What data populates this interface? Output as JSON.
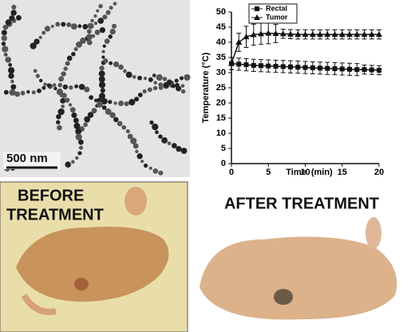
{
  "chart_data": {
    "type": "line",
    "x_label": "Time  (min)",
    "y_label": "Temperature (°C)",
    "x": [
      0,
      1,
      2,
      3,
      4,
      5,
      6,
      7,
      8,
      9,
      10,
      11,
      12,
      13,
      14,
      15,
      16,
      17,
      18,
      19,
      20
    ],
    "series": [
      {
        "name": "Rectal",
        "color": "#111111",
        "marker": "square",
        "values": [
          33,
          32.8,
          32.6,
          32.4,
          32.3,
          32.2,
          32.1,
          32,
          31.9,
          31.8,
          31.7,
          31.6,
          31.5,
          31.4,
          31.3,
          31.2,
          31.1,
          31,
          31,
          30.9,
          30.8
        ],
        "errors": [
          2,
          2,
          2,
          2,
          2,
          2,
          2,
          2,
          2,
          2,
          2,
          2,
          2,
          2,
          2,
          2,
          2,
          2,
          1.5,
          1.5,
          1.5
        ]
      },
      {
        "name": "Tumor",
        "color": "#111111",
        "marker": "triangle",
        "values": [
          33,
          40,
          41.8,
          42.5,
          42.8,
          43,
          42.9,
          42.8,
          42.7,
          42.6,
          42.6,
          42.6,
          42.6,
          42.6,
          42.6,
          42.6,
          42.6,
          42.6,
          42.6,
          42.6,
          42.6
        ],
        "errors": [
          2,
          3,
          3.5,
          3.5,
          3.5,
          3.5,
          3,
          1.5,
          1.5,
          1.5,
          1.5,
          1.5,
          1.5,
          1.5,
          1.5,
          1.5,
          1.5,
          1.5,
          1.5,
          1.5,
          1.5
        ]
      }
    ],
    "xlim": [
      0,
      20
    ],
    "xticks": [
      0,
      5,
      10,
      15,
      20
    ],
    "ylim": [
      0,
      50
    ],
    "yticks": [
      0,
      5,
      10,
      15,
      20,
      25,
      30,
      35,
      40,
      45,
      50
    ],
    "legend": "top-left"
  },
  "panels": {
    "scale_bar": "500 nm",
    "before_label": [
      "BEFORE",
      "TREATMENT"
    ],
    "after_label": "AFTER TREATMENT"
  }
}
